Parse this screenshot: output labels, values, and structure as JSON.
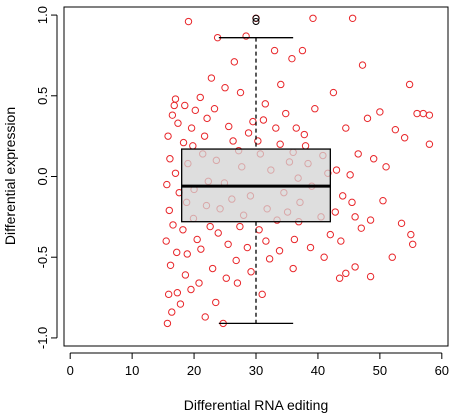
{
  "chart_data": {
    "type": "scatter",
    "xlabel": "Differential RNA editing",
    "ylabel": "Differential  expression",
    "xlim": [
      -1,
      61
    ],
    "ylim": [
      -1.05,
      1.05
    ],
    "x_ticks": [
      "0",
      "10",
      "20",
      "30",
      "40",
      "50",
      "60"
    ],
    "x_tick_values": [
      0,
      10,
      20,
      30,
      40,
      50,
      60
    ],
    "y_ticks": [
      "-1.0",
      "-0.5",
      "0.0",
      "0.5",
      "1.0"
    ],
    "y_tick_values": [
      -1.0,
      -0.5,
      0.0,
      0.5,
      1.0
    ],
    "point_color": "#e8262a",
    "box_fill": "#d3d3d3",
    "boxplot": {
      "x_min": 18,
      "x_q1": 18,
      "x_median": 30,
      "x_q3": 42,
      "center_x": 30,
      "whisker_low": -0.91,
      "q1": -0.28,
      "median": -0.06,
      "q3": 0.17,
      "whisker_high": 0.86,
      "cap_left": 24,
      "cap_right": 36,
      "outliers": [
        0.96,
        0.98
      ]
    },
    "scatter_points": [
      [
        19.1,
        0.96
      ],
      [
        30.0,
        0.98
      ],
      [
        39.2,
        0.98
      ],
      [
        45.6,
        0.98
      ],
      [
        23.8,
        0.86
      ],
      [
        28.4,
        0.87
      ],
      [
        26.5,
        0.71
      ],
      [
        35.8,
        0.73
      ],
      [
        33.0,
        0.78
      ],
      [
        37.5,
        0.78
      ],
      [
        47.2,
        0.69
      ],
      [
        22.8,
        0.61
      ],
      [
        54.8,
        0.57
      ],
      [
        25.0,
        0.55
      ],
      [
        42.5,
        0.52
      ],
      [
        17.0,
        0.48
      ],
      [
        16.5,
        0.38
      ],
      [
        56.0,
        0.39
      ],
      [
        57.0,
        0.39
      ],
      [
        58.0,
        0.38
      ],
      [
        50.0,
        0.4
      ],
      [
        48.0,
        0.36
      ],
      [
        44.5,
        0.3
      ],
      [
        52.5,
        0.29
      ],
      [
        15.8,
        0.25
      ],
      [
        16.1,
        0.11
      ],
      [
        15.6,
        -0.05
      ],
      [
        16.0,
        -0.21
      ],
      [
        15.5,
        -0.4
      ],
      [
        16.2,
        -0.55
      ],
      [
        15.9,
        -0.73
      ],
      [
        16.4,
        -0.84
      ],
      [
        15.7,
        -0.91
      ],
      [
        24.7,
        -0.91
      ],
      [
        42.0,
        -0.36
      ],
      [
        46.0,
        -0.25
      ],
      [
        47.0,
        -0.32
      ],
      [
        48.5,
        -0.27
      ],
      [
        50.5,
        -0.15
      ],
      [
        53.5,
        -0.29
      ],
      [
        55.0,
        -0.36
      ],
      [
        55.3,
        -0.42
      ],
      [
        52.0,
        -0.5
      ],
      [
        46.0,
        -0.56
      ],
      [
        44.5,
        -0.6
      ],
      [
        48.5,
        -0.62
      ],
      [
        43.5,
        -0.63
      ],
      [
        41.0,
        -0.5
      ],
      [
        36.0,
        -0.57
      ],
      [
        31.0,
        -0.73
      ],
      [
        23.5,
        -0.78
      ],
      [
        21.8,
        -0.87
      ],
      [
        27.0,
        -0.66
      ],
      [
        58.0,
        0.2
      ],
      [
        51.0,
        0.06
      ],
      [
        54.0,
        0.24
      ],
      [
        49.0,
        0.11
      ],
      [
        45.2,
        0.01
      ],
      [
        43.0,
        0.04
      ],
      [
        46.5,
        0.14
      ],
      [
        34.0,
        0.57
      ],
      [
        31.5,
        0.45
      ],
      [
        29.5,
        0.34
      ],
      [
        27.5,
        0.52
      ],
      [
        21.0,
        0.49
      ],
      [
        20.2,
        0.41
      ],
      [
        19.6,
        0.3
      ],
      [
        22.1,
        0.36
      ],
      [
        18.3,
        0.21
      ],
      [
        36.5,
        0.3
      ],
      [
        39.5,
        0.42
      ],
      [
        38.0,
        0.19
      ],
      [
        44.0,
        -0.12
      ],
      [
        45.5,
        -0.16
      ],
      [
        43.7,
        -0.4
      ],
      [
        42.8,
        -0.22
      ],
      [
        38.8,
        -0.44
      ],
      [
        36.2,
        -0.39
      ],
      [
        33.8,
        -0.46
      ],
      [
        32.2,
        -0.51
      ],
      [
        29.2,
        -0.59
      ],
      [
        26.8,
        -0.52
      ],
      [
        25.2,
        -0.63
      ],
      [
        23.0,
        -0.57
      ],
      [
        20.8,
        -0.66
      ],
      [
        19.5,
        -0.7
      ],
      [
        18.6,
        -0.61
      ],
      [
        17.3,
        -0.72
      ],
      [
        17.8,
        -0.79
      ],
      [
        18.9,
        -0.48
      ],
      [
        20.5,
        -0.39
      ],
      [
        22.6,
        -0.31
      ],
      [
        24.2,
        -0.2
      ],
      [
        26.1,
        -0.14
      ],
      [
        28.0,
        -0.24
      ],
      [
        31.8,
        -0.2
      ],
      [
        34.5,
        -0.1
      ],
      [
        36.8,
        -0.01
      ],
      [
        38.4,
        0.08
      ],
      [
        40.8,
        0.13
      ],
      [
        17.0,
        0.02
      ],
      [
        17.6,
        -0.1
      ],
      [
        18.2,
        -0.33
      ],
      [
        19.0,
        0.08
      ],
      [
        20.0,
        -0.08
      ],
      [
        21.4,
        0.14
      ],
      [
        22.3,
        -0.03
      ],
      [
        23.6,
        0.1
      ],
      [
        24.9,
        -0.04
      ],
      [
        26.3,
        0.22
      ],
      [
        27.7,
        0.06
      ],
      [
        29.1,
        -0.12
      ],
      [
        30.7,
        0.14
      ],
      [
        32.4,
        0.04
      ],
      [
        33.9,
        0.2
      ],
      [
        35.4,
        0.09
      ],
      [
        37.1,
        -0.16
      ],
      [
        39.0,
        -0.06
      ],
      [
        40.5,
        -0.25
      ],
      [
        41.6,
        0.02
      ],
      [
        16.8,
        0.44
      ],
      [
        17.4,
        0.33
      ],
      [
        18.5,
        0.44
      ],
      [
        19.8,
        0.19
      ],
      [
        21.7,
        0.25
      ],
      [
        23.3,
        0.42
      ],
      [
        25.6,
        0.31
      ],
      [
        27.2,
        0.16
      ],
      [
        28.8,
        0.27
      ],
      [
        30.3,
        0.22
      ],
      [
        31.2,
        0.35
      ],
      [
        33.2,
        0.3
      ],
      [
        34.8,
        0.39
      ],
      [
        36.0,
        0.15
      ],
      [
        37.8,
        0.26
      ],
      [
        16.6,
        -0.3
      ],
      [
        17.2,
        -0.47
      ],
      [
        18.8,
        -0.16
      ],
      [
        19.9,
        -0.26
      ],
      [
        21.1,
        -0.45
      ],
      [
        22.0,
        -0.18
      ],
      [
        23.9,
        -0.35
      ],
      [
        25.5,
        -0.42
      ],
      [
        27.4,
        -0.31
      ],
      [
        28.6,
        -0.44
      ],
      [
        30.5,
        -0.33
      ],
      [
        31.6,
        -0.4
      ],
      [
        33.4,
        -0.27
      ],
      [
        35.1,
        -0.22
      ],
      [
        36.9,
        -0.28
      ]
    ]
  }
}
